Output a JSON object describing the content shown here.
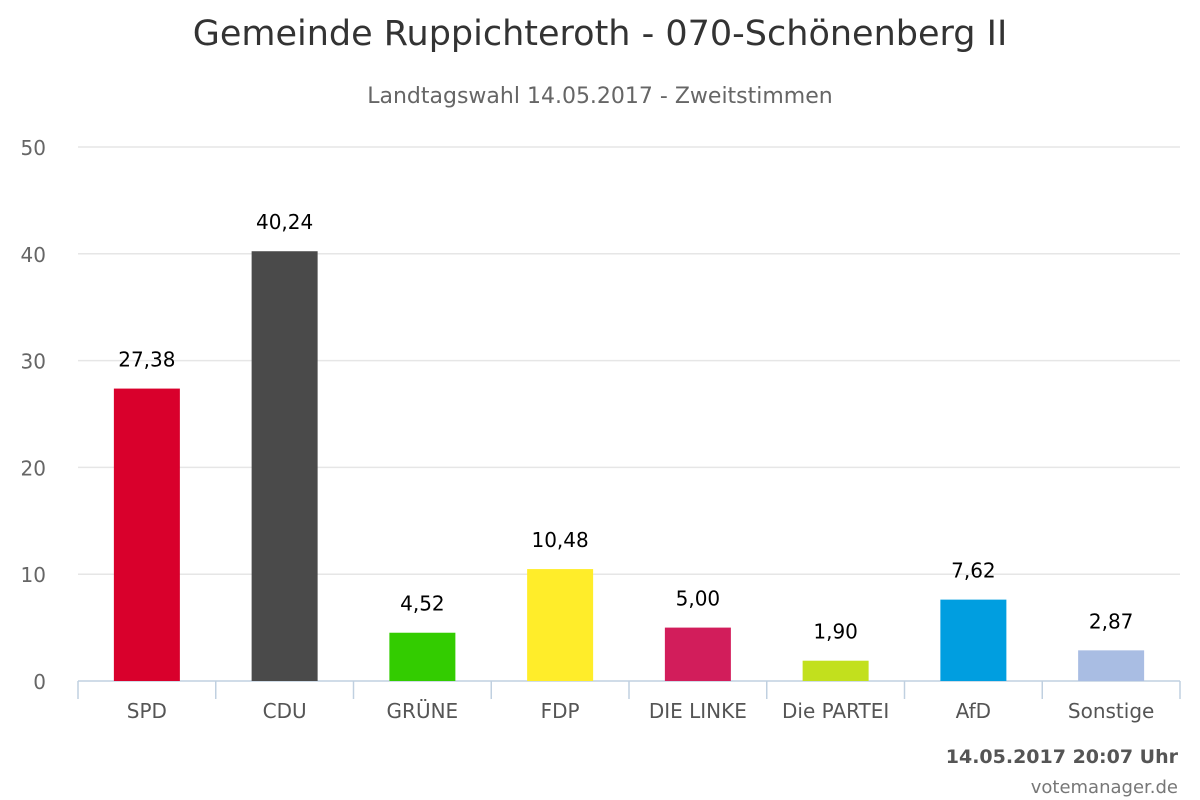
{
  "header": {
    "title": "Gemeinde Ruppichteroth - 070-Schönenberg II",
    "subtitle": "Landtagswahl 14.05.2017 - Zweitstimmen"
  },
  "footer": {
    "timestamp": "14.05.2017 20:07 Uhr",
    "credit": "votemanager.de"
  },
  "chart_data": {
    "type": "bar",
    "categories": [
      "SPD",
      "CDU",
      "GRÜNE",
      "FDP",
      "DIE LINKE",
      "Die PARTEI",
      "AfD",
      "Sonstige"
    ],
    "values": [
      27.38,
      40.24,
      4.52,
      10.48,
      5.0,
      1.9,
      7.62,
      2.87
    ],
    "value_labels": [
      "27,38",
      "40,24",
      "4,52",
      "10,48",
      "5,00",
      "1,90",
      "7,62",
      "2,87"
    ],
    "colors": [
      "#d9002c",
      "#4a4a4a",
      "#33cc00",
      "#ffed2a",
      "#d21d5b",
      "#c2e01d",
      "#009ee0",
      "#a9bde3"
    ],
    "ylim": [
      0,
      50
    ],
    "yticks": [
      0,
      10,
      20,
      30,
      40,
      50
    ],
    "grid": true,
    "legend": "none"
  }
}
